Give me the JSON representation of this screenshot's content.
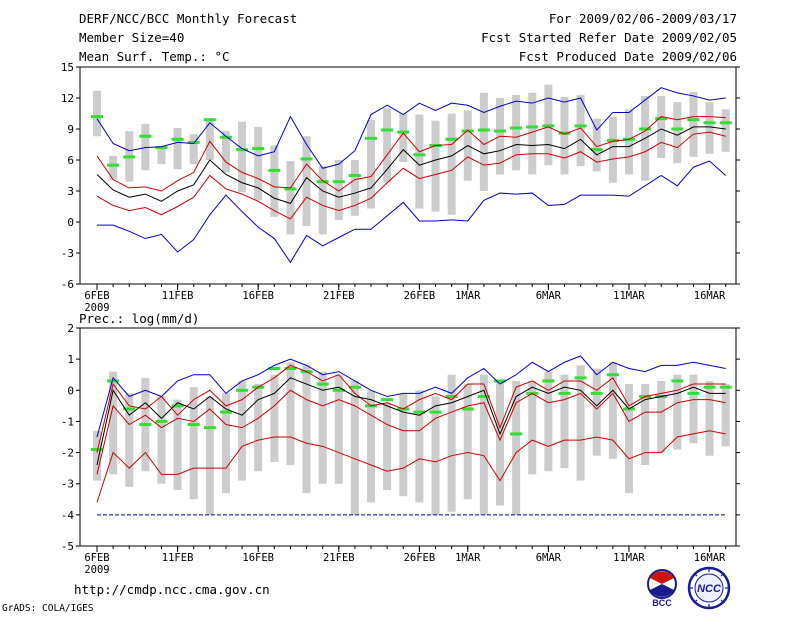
{
  "header": {
    "title": "DERF/NCC/BCC Monthly Forecast",
    "member_size": "Member Size=40",
    "variable1": "Mean Surf. Temp.: °C",
    "period": "For 2009/02/06-2009/03/17",
    "started": "Fcst Started Refer Date 2009/02/05",
    "produced": "Fcst Produced Date 2009/02/06"
  },
  "variable2": "Prec.: log(mm/d)",
  "footer": {
    "url": "http://cmdp.ncc.cma.gov.cn",
    "credit": "GrADS: COLA/IGES"
  },
  "logos": {
    "bcc": "BCC",
    "ncc": "NCC"
  },
  "colors": {
    "ens_mean": "#000000",
    "spread": "#cc0000",
    "extreme": "#0000cc",
    "box": "#cccccc",
    "median": "#33dd33"
  },
  "chart_data": [
    {
      "type": "line",
      "title": "Mean Surf. Temp.: °C",
      "xlabel": "",
      "ylabel": "",
      "ylim": [
        -6,
        15
      ],
      "yticks": [
        -6,
        -3,
        0,
        3,
        6,
        9,
        12,
        15
      ],
      "xticks": [
        {
          "day": 1,
          "label": "6FEB",
          "sub": "2009"
        },
        {
          "day": 6,
          "label": "11FEB"
        },
        {
          "day": 11,
          "label": "16FEB"
        },
        {
          "day": 16,
          "label": "21FEB"
        },
        {
          "day": 21,
          "label": "26FEB"
        },
        {
          "day": 24,
          "label": "1MAR"
        },
        {
          "day": 29,
          "label": "6MAR"
        },
        {
          "day": 34,
          "label": "11MAR"
        },
        {
          "day": 39,
          "label": "16MAR"
        }
      ],
      "days": [
        1,
        2,
        3,
        4,
        5,
        6,
        7,
        8,
        9,
        10,
        11,
        12,
        13,
        14,
        15,
        16,
        17,
        18,
        19,
        20,
        21,
        22,
        23,
        24,
        25,
        26,
        27,
        28,
        29,
        30,
        31,
        32,
        33,
        34,
        35,
        36,
        37,
        38,
        39,
        40
      ],
      "series": [
        {
          "name": "max",
          "values": [
            10.0,
            7.6,
            6.9,
            7.2,
            7.3,
            7.7,
            7.6,
            9.6,
            8.3,
            7.1,
            6.4,
            6.8,
            10.2,
            7.5,
            5.2,
            5.6,
            6.9,
            10.4,
            11.3,
            10.4,
            11.5,
            10.8,
            11.5,
            11.3,
            10.6,
            11.2,
            11.7,
            11.5,
            12.0,
            11.6,
            12.0,
            8.9,
            10.6,
            10.6,
            11.8,
            13.0,
            12.5,
            12.2,
            11.8,
            12.0
          ]
        },
        {
          "name": "upper",
          "values": [
            6.4,
            4.1,
            3.3,
            3.4,
            3.0,
            4.0,
            4.8,
            7.8,
            5.8,
            4.8,
            4.2,
            3.4,
            3.3,
            5.6,
            4.0,
            3.0,
            4.1,
            4.4,
            6.5,
            8.6,
            6.8,
            7.4,
            7.5,
            8.9,
            7.5,
            8.3,
            8.2,
            8.7,
            9.2,
            8.5,
            9.1,
            7.3,
            7.8,
            8.0,
            8.8,
            10.2,
            9.9,
            10.2,
            10.2,
            10.1
          ]
        },
        {
          "name": "mean",
          "values": [
            4.6,
            3.1,
            2.4,
            2.7,
            2.0,
            3.0,
            3.6,
            6.0,
            4.6,
            3.8,
            3.3,
            2.3,
            1.8,
            4.3,
            3.0,
            2.4,
            2.8,
            3.3,
            5.1,
            7.0,
            5.5,
            6.0,
            6.4,
            7.4,
            6.6,
            6.9,
            7.5,
            7.4,
            7.5,
            7.1,
            8.0,
            6.5,
            7.3,
            7.3,
            8.1,
            9.0,
            8.4,
            9.2,
            9.2,
            9.0
          ]
        },
        {
          "name": "lower",
          "values": [
            2.5,
            1.6,
            1.1,
            1.4,
            0.7,
            1.5,
            2.4,
            4.5,
            3.2,
            2.7,
            2.0,
            1.1,
            0.3,
            2.4,
            1.6,
            1.1,
            1.6,
            2.3,
            3.8,
            5.2,
            4.2,
            4.6,
            5.0,
            6.3,
            5.5,
            5.7,
            6.5,
            6.6,
            6.6,
            6.2,
            6.8,
            5.8,
            6.1,
            6.3,
            6.8,
            7.7,
            7.2,
            8.5,
            8.7,
            8.3
          ]
        },
        {
          "name": "min",
          "values": [
            -0.3,
            -0.3,
            -0.9,
            -1.6,
            -1.2,
            -2.9,
            -1.7,
            0.7,
            2.6,
            1.0,
            -0.5,
            -1.6,
            -3.9,
            -1.3,
            -2.3,
            -1.5,
            -0.7,
            -0.7,
            0.6,
            1.9,
            0.1,
            0.1,
            0.2,
            0.1,
            2.1,
            2.8,
            2.7,
            2.8,
            1.6,
            1.7,
            2.6,
            2.6,
            2.6,
            2.5,
            3.5,
            4.5,
            3.5,
            5.3,
            5.9,
            4.5
          ]
        }
      ],
      "boxes": [
        {
          "lo": 8.3,
          "hi": 12.7,
          "median": 10.2
        },
        {
          "lo": 4.1,
          "hi": 6.4,
          "median": 5.5
        },
        {
          "lo": 3.9,
          "hi": 8.8,
          "median": 6.3
        },
        {
          "lo": 5.0,
          "hi": 9.5,
          "median": 8.3
        },
        {
          "lo": 5.6,
          "hi": 7.2,
          "median": 7.2
        },
        {
          "lo": 5.1,
          "hi": 9.1,
          "median": 8.0
        },
        {
          "lo": 5.6,
          "hi": 8.5,
          "median": 7.7
        },
        {
          "lo": 6.0,
          "hi": 10.0,
          "median": 9.9
        },
        {
          "lo": 4.8,
          "hi": 8.8,
          "median": 8.2
        },
        {
          "lo": 2.9,
          "hi": 9.7,
          "median": 7.0
        },
        {
          "lo": 2.1,
          "hi": 9.2,
          "median": 7.1
        },
        {
          "lo": 0.5,
          "hi": 7.4,
          "median": 5.0
        },
        {
          "lo": -1.2,
          "hi": 5.9,
          "median": 3.2
        },
        {
          "lo": -0.4,
          "hi": 8.3,
          "median": 6.1
        },
        {
          "lo": -1.2,
          "hi": 5.4,
          "median": 3.9
        },
        {
          "lo": 0.2,
          "hi": 6.0,
          "median": 3.9
        },
        {
          "lo": 0.6,
          "hi": 6.0,
          "median": 4.5
        },
        {
          "lo": 1.3,
          "hi": 9.9,
          "median": 8.1
        },
        {
          "lo": 3.8,
          "hi": 11.0,
          "median": 8.9
        },
        {
          "lo": 5.8,
          "hi": 10.5,
          "median": 8.7
        },
        {
          "lo": 1.3,
          "hi": 10.4,
          "median": 6.5
        },
        {
          "lo": 1.0,
          "hi": 9.8,
          "median": 7.4
        },
        {
          "lo": 0.7,
          "hi": 10.5,
          "median": 8.0
        },
        {
          "lo": 4.0,
          "hi": 10.8,
          "median": 8.8
        },
        {
          "lo": 3.0,
          "hi": 12.5,
          "median": 8.9
        },
        {
          "lo": 4.6,
          "hi": 12.0,
          "median": 8.8
        },
        {
          "lo": 5.0,
          "hi": 12.3,
          "median": 9.1
        },
        {
          "lo": 4.6,
          "hi": 12.5,
          "median": 9.2
        },
        {
          "lo": 5.5,
          "hi": 13.3,
          "median": 9.3
        },
        {
          "lo": 4.6,
          "hi": 12.1,
          "median": 8.6
        },
        {
          "lo": 5.4,
          "hi": 12.3,
          "median": 9.3
        },
        {
          "lo": 4.9,
          "hi": 10.0,
          "median": 7.0
        },
        {
          "lo": 3.8,
          "hi": 10.2,
          "median": 7.9
        },
        {
          "lo": 4.6,
          "hi": 10.9,
          "median": 8.0
        },
        {
          "lo": 4.0,
          "hi": 12.2,
          "median": 9.0
        },
        {
          "lo": 6.2,
          "hi": 12.2,
          "median": 10.0
        },
        {
          "lo": 5.7,
          "hi": 11.6,
          "median": 9.0
        },
        {
          "lo": 6.3,
          "hi": 12.6,
          "median": 9.9
        },
        {
          "lo": 6.6,
          "hi": 11.6,
          "median": 9.6
        },
        {
          "lo": 6.8,
          "hi": 10.9,
          "median": 9.6
        }
      ]
    },
    {
      "type": "line",
      "title": "Prec.: log(mm/d)",
      "xlabel": "",
      "ylabel": "",
      "ylim": [
        -5,
        2
      ],
      "yticks": [
        -5,
        -4,
        -3,
        -2,
        -1,
        0,
        1,
        2
      ],
      "baseline": -4,
      "xticks": [
        {
          "day": 1,
          "label": "6FEB",
          "sub": "2009"
        },
        {
          "day": 6,
          "label": "11FEB"
        },
        {
          "day": 11,
          "label": "16FEB"
        },
        {
          "day": 16,
          "label": "21FEB"
        },
        {
          "day": 21,
          "label": "26FEB"
        },
        {
          "day": 24,
          "label": "1MAR"
        },
        {
          "day": 29,
          "label": "6MAR"
        },
        {
          "day": 34,
          "label": "11MAR"
        },
        {
          "day": 39,
          "label": "16MAR"
        }
      ],
      "days": [
        1,
        2,
        3,
        4,
        5,
        6,
        7,
        8,
        9,
        10,
        11,
        12,
        13,
        14,
        15,
        16,
        17,
        18,
        19,
        20,
        21,
        22,
        23,
        24,
        25,
        26,
        27,
        28,
        29,
        30,
        31,
        32,
        33,
        34,
        35,
        36,
        37,
        38,
        39,
        40
      ],
      "series": [
        {
          "name": "max",
          "values": [
            -1.5,
            0.4,
            -0.2,
            0.0,
            -0.2,
            0.3,
            0.5,
            0.5,
            -0.1,
            0.3,
            0.5,
            0.8,
            1.0,
            0.8,
            0.5,
            0.6,
            0.3,
            0.0,
            -0.2,
            -0.1,
            -0.1,
            0.1,
            -0.1,
            0.4,
            0.7,
            0.2,
            0.5,
            0.9,
            0.6,
            0.9,
            1.1,
            0.5,
            0.9,
            0.7,
            0.6,
            0.8,
            0.8,
            0.9,
            0.8,
            0.7
          ]
        },
        {
          "name": "upper",
          "values": [
            -2.0,
            0.2,
            -0.5,
            -0.6,
            -0.2,
            -0.8,
            -0.3,
            0.0,
            -0.5,
            -0.3,
            0.1,
            0.4,
            0.8,
            0.6,
            0.3,
            0.5,
            -0.1,
            -0.5,
            -0.4,
            -0.6,
            -0.3,
            -0.1,
            -0.3,
            0.2,
            0.2,
            -1.2,
            0.1,
            0.3,
            0.0,
            0.3,
            0.3,
            0.0,
            0.4,
            -0.5,
            -0.2,
            -0.1,
            0.0,
            0.2,
            0.2,
            0.2
          ]
        },
        {
          "name": "mean",
          "values": [
            -2.4,
            0.0,
            -0.8,
            -0.4,
            -0.9,
            -0.4,
            -0.6,
            -0.2,
            -0.6,
            -0.8,
            -0.3,
            -0.1,
            0.4,
            0.2,
            0.0,
            0.1,
            -0.2,
            -0.3,
            -0.5,
            -0.7,
            -0.8,
            -0.5,
            -0.4,
            -0.2,
            0.0,
            -1.4,
            -0.2,
            0.1,
            -0.1,
            0.1,
            0.0,
            -0.5,
            0.0,
            -0.6,
            -0.3,
            -0.2,
            -0.1,
            0.1,
            -0.1,
            -0.1
          ]
        },
        {
          "name": "lower",
          "values": [
            -2.7,
            -0.5,
            -1.1,
            -0.8,
            -1.2,
            -0.9,
            -1.0,
            -0.6,
            -1.1,
            -1.2,
            -0.9,
            -0.5,
            0.0,
            -0.3,
            -0.5,
            -0.3,
            -0.5,
            -0.8,
            -1.1,
            -1.3,
            -1.3,
            -0.9,
            -0.7,
            -0.5,
            -0.4,
            -1.6,
            -0.4,
            -0.1,
            -0.4,
            -0.3,
            -0.1,
            -0.6,
            -0.1,
            -1.0,
            -0.7,
            -0.7,
            -0.4,
            -0.3,
            -0.3,
            -0.4
          ]
        },
        {
          "name": "low",
          "values": [
            -3.6,
            -2.0,
            -2.5,
            -2.0,
            -2.7,
            -2.7,
            -2.5,
            -2.5,
            -2.5,
            -1.8,
            -1.6,
            -1.5,
            -1.5,
            -1.7,
            -1.8,
            -2.0,
            -2.2,
            -2.4,
            -2.6,
            -2.5,
            -2.2,
            -2.3,
            -2.1,
            -2.0,
            -2.1,
            -2.9,
            -2.0,
            -1.6,
            -1.8,
            -1.6,
            -1.6,
            -1.5,
            -1.6,
            -2.2,
            -2.0,
            -2.0,
            -1.5,
            -1.4,
            -1.3,
            -1.4
          ]
        },
        {
          "name": "min",
          "values": [
            -4,
            -4,
            -4,
            -4,
            -4,
            -4,
            -4,
            -4,
            -4,
            -4,
            -4,
            -4,
            -4,
            -4,
            -4,
            -4,
            -4,
            -4,
            -4,
            -4,
            -4,
            -4,
            -4,
            -4,
            -4,
            -4,
            -4,
            -4,
            -4,
            -4,
            -4,
            -4,
            -4,
            -4,
            -4,
            -4,
            -4,
            -4,
            -4,
            -4
          ]
        }
      ],
      "boxes": [
        {
          "lo": -2.9,
          "hi": -1.3,
          "median": -1.9
        },
        {
          "lo": -2.7,
          "hi": 0.6,
          "median": 0.3
        },
        {
          "lo": -3.1,
          "hi": -0.1,
          "median": -0.6
        },
        {
          "lo": -2.6,
          "hi": 0.4,
          "median": -1.1
        },
        {
          "lo": -3.0,
          "hi": -0.2,
          "median": -1.0
        },
        {
          "lo": -3.2,
          "hi": -0.3,
          "median": -0.5
        },
        {
          "lo": -3.5,
          "hi": 0.1,
          "median": -1.1
        },
        {
          "lo": -4.0,
          "hi": -0.2,
          "median": -1.2
        },
        {
          "lo": -3.3,
          "hi": -0.1,
          "median": -0.7
        },
        {
          "lo": -2.9,
          "hi": 0.3,
          "median": 0.0
        },
        {
          "lo": -2.6,
          "hi": 0.2,
          "median": 0.1
        },
        {
          "lo": -2.3,
          "hi": 0.5,
          "median": 0.7
        },
        {
          "lo": -2.4,
          "hi": 0.9,
          "median": 0.7
        },
        {
          "lo": -3.3,
          "hi": 0.8,
          "median": 0.6
        },
        {
          "lo": -3.0,
          "hi": 0.6,
          "median": 0.2
        },
        {
          "lo": -3.0,
          "hi": 0.5,
          "median": 0.0
        },
        {
          "lo": -4.0,
          "hi": 0.3,
          "median": 0.1
        },
        {
          "lo": -3.6,
          "hi": 0.0,
          "median": -0.5
        },
        {
          "lo": -3.2,
          "hi": -0.4,
          "median": -0.3
        },
        {
          "lo": -3.4,
          "hi": -0.1,
          "median": -0.6
        },
        {
          "lo": -3.6,
          "hi": 0.0,
          "median": -0.7
        },
        {
          "lo": -4.0,
          "hi": -0.2,
          "median": -0.7
        },
        {
          "lo": -3.9,
          "hi": 0.5,
          "median": -0.2
        },
        {
          "lo": -3.5,
          "hi": 0.2,
          "median": -0.6
        },
        {
          "lo": -4.0,
          "hi": 0.5,
          "median": -0.2
        },
        {
          "lo": -3.7,
          "hi": 0.3,
          "median": 0.3
        },
        {
          "lo": -4.0,
          "hi": 0.3,
          "median": -1.4
        },
        {
          "lo": -2.7,
          "hi": 0.3,
          "median": -0.1
        },
        {
          "lo": -2.6,
          "hi": 0.6,
          "median": 0.3
        },
        {
          "lo": -2.5,
          "hi": 0.5,
          "median": -0.1
        },
        {
          "lo": -2.9,
          "hi": 0.8,
          "median": 0.4
        },
        {
          "lo": -2.1,
          "hi": 0.7,
          "median": -0.1
        },
        {
          "lo": -2.2,
          "hi": 0.9,
          "median": 0.5
        },
        {
          "lo": -3.3,
          "hi": 0.2,
          "median": -0.6
        },
        {
          "lo": -2.4,
          "hi": 0.2,
          "median": -0.2
        },
        {
          "lo": -2.0,
          "hi": 0.3,
          "median": -0.2
        },
        {
          "lo": -1.9,
          "hi": 0.5,
          "median": 0.3
        },
        {
          "lo": -1.7,
          "hi": 0.5,
          "median": -0.1
        },
        {
          "lo": -2.1,
          "hi": 0.3,
          "median": 0.1
        },
        {
          "lo": -1.8,
          "hi": 0.2,
          "median": 0.1
        }
      ]
    }
  ]
}
